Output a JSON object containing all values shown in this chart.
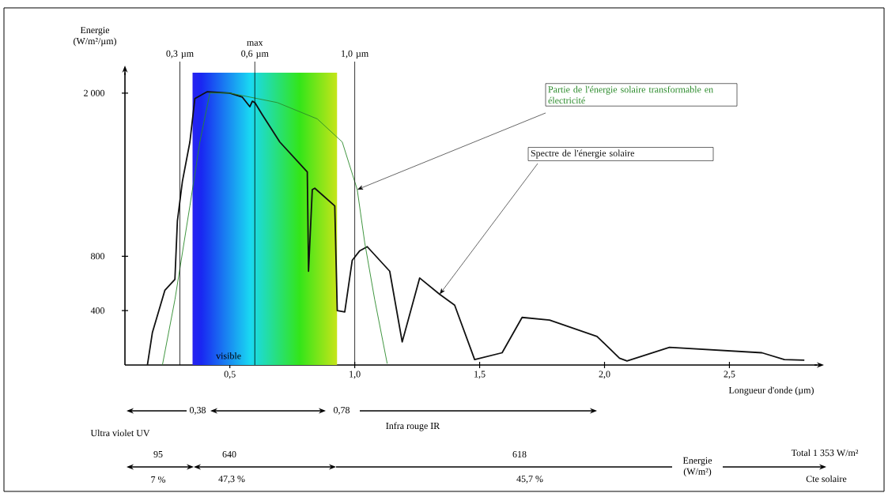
{
  "chart_data": {
    "type": "line",
    "ylabel": "Energie (W/m²/µm)",
    "xlabel": "Longueur d'onde (µm)",
    "xlim": [
      0.08,
      2.85
    ],
    "ylim": [
      0,
      2150
    ],
    "xticks": [
      {
        "value": 0.5,
        "label": "0,5"
      },
      {
        "value": 1.0,
        "label": "1,0"
      },
      {
        "value": 1.5,
        "label": "1,5"
      },
      {
        "value": 2.0,
        "label": "2,0"
      },
      {
        "value": 2.5,
        "label": "2,5"
      }
    ],
    "yticks": [
      400,
      800,
      {
        "value": 2000,
        "label": "2 000"
      }
    ],
    "series": [
      {
        "name": "Spectre de l'énergie solaire",
        "color": "#111111",
        "x": [
          0.17,
          0.19,
          0.24,
          0.28,
          0.29,
          0.31,
          0.34,
          0.36,
          0.41,
          0.5,
          0.55,
          0.58,
          0.59,
          0.6,
          0.63,
          0.7,
          0.81,
          0.815,
          0.83,
          0.84,
          0.92,
          0.93,
          0.96,
          0.99,
          1.02,
          1.05,
          1.14,
          1.19,
          1.26,
          1.34,
          1.4,
          1.48,
          1.59,
          1.67,
          1.78,
          1.97,
          2.06,
          2.09,
          2.26,
          2.63,
          2.72,
          2.8
        ],
        "values": [
          0,
          240,
          550,
          630,
          1060,
          1350,
          1640,
          1960,
          2010,
          2000,
          1970,
          1900,
          1940,
          1930,
          1840,
          1640,
          1420,
          690,
          1290,
          1300,
          1170,
          400,
          390,
          770,
          840,
          870,
          690,
          170,
          640,
          520,
          440,
          40,
          90,
          350,
          330,
          210,
          50,
          30,
          130,
          90,
          40,
          35
        ]
      },
      {
        "name": "Partie de l'énergie solaire transformable en électricité",
        "color": "#2a8a2a",
        "x": [
          0.23,
          0.28,
          0.34,
          0.38,
          0.42,
          0.5,
          0.69,
          0.85,
          0.95,
          1.01,
          1.04,
          1.08,
          1.13
        ],
        "values": [
          0,
          480,
          1170,
          1640,
          2000,
          2000,
          1930,
          1810,
          1640,
          1290,
          900,
          480,
          10
        ]
      }
    ],
    "ref_lines": [
      {
        "axis": "x",
        "value": 0.3,
        "label": "0,3 µm"
      },
      {
        "axis": "x",
        "value": 0.6,
        "label": "max 0,6 µm"
      },
      {
        "axis": "x",
        "value": 1.0,
        "label": "1,0 µm"
      }
    ],
    "bands": [
      {
        "axis": "x",
        "from": 0.35,
        "to": 0.93,
        "label": "visible"
      }
    ],
    "annotations": [
      "0,38",
      "0,78",
      "Ultra violet UV",
      "Infra rouge IR",
      "95",
      "640",
      "618",
      "Energie (W/m²)",
      "Total 1 353 W/m²",
      "7 %",
      "47,3 %",
      "45,7 %",
      "Cte solaire"
    ],
    "grid": false,
    "legend": false,
    "marker": "none",
    "line_style": "solid"
  }
}
